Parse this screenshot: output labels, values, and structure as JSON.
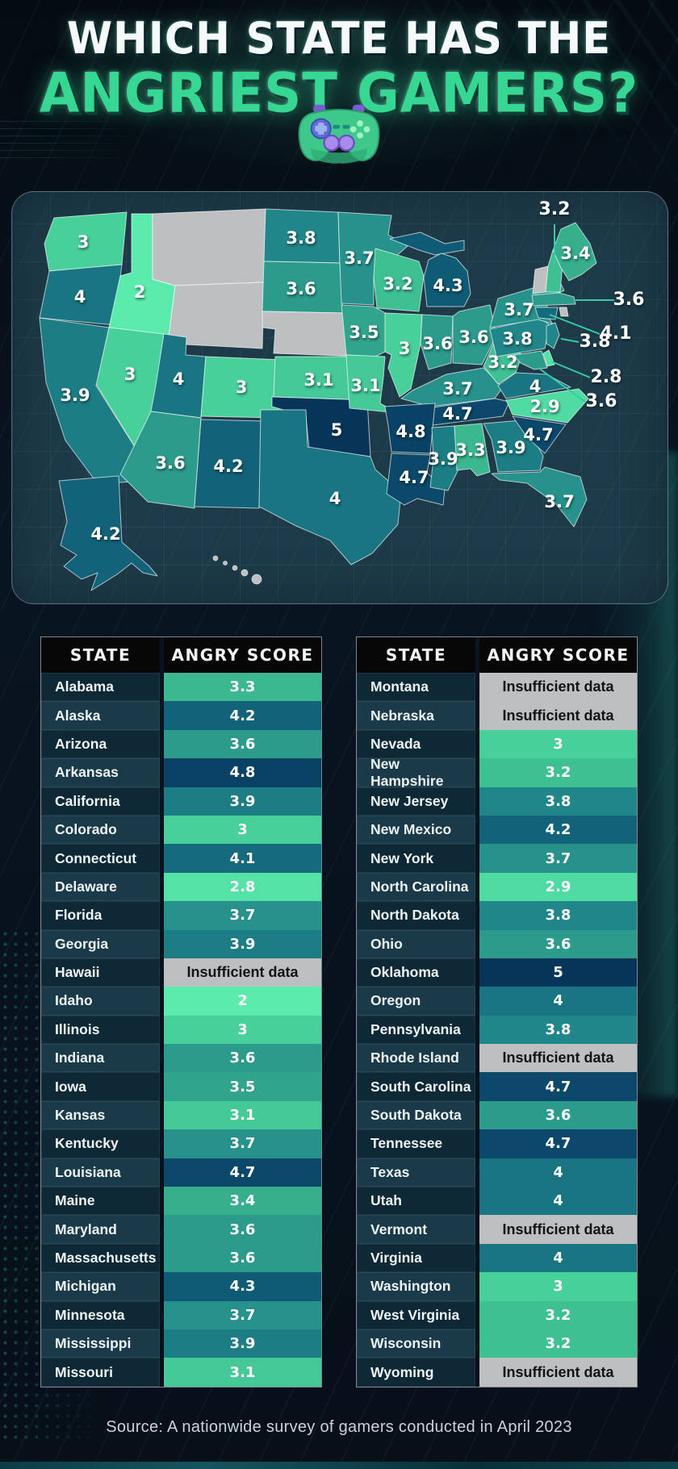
{
  "title": {
    "line1": "WHICH STATE HAS THE",
    "line2": "ANGRIEST GAMERS?"
  },
  "source_note": "Source: A nationwide survey of gamers conducted in April 2023",
  "table_headers": [
    "STATE",
    "ANGRY SCORE"
  ],
  "insufficient_label": "Insufficient data",
  "score_colors": {
    "2": "#5BEBAD",
    "2.8": "#55E2A6",
    "2.9": "#50DBA2",
    "3": "#48D09B",
    "3.1": "#44C997",
    "3.2": "#3FC093",
    "3.3": "#3BB890",
    "3.4": "#36AF8C",
    "3.5": "#31A58B",
    "3.6": "#2C9B8B",
    "3.7": "#27928C",
    "3.8": "#218689",
    "3.9": "#1D7D85",
    "4": "#197581",
    "4.1": "#156B7D",
    "4.2": "#126379",
    "4.3": "#0F5A74",
    "4.7": "#0B486A",
    "4.8": "#094264",
    "5": "#07355A",
    "insufficient": "#BDBFC0"
  },
  "accent_colors": {
    "title_green": "#36D793",
    "background": "#081019",
    "map_panel": "#1D3A48",
    "callout_line": "#35CBA6"
  },
  "states": [
    {
      "abbr": "AL",
      "name": "Alabama",
      "score": 3.3
    },
    {
      "abbr": "AK",
      "name": "Alaska",
      "score": 4.2
    },
    {
      "abbr": "AZ",
      "name": "Arizona",
      "score": 3.6
    },
    {
      "abbr": "AR",
      "name": "Arkansas",
      "score": 4.8
    },
    {
      "abbr": "CA",
      "name": "California",
      "score": 3.9
    },
    {
      "abbr": "CO",
      "name": "Colorado",
      "score": 3
    },
    {
      "abbr": "CT",
      "name": "Connecticut",
      "score": 4.1
    },
    {
      "abbr": "DE",
      "name": "Delaware",
      "score": 2.8
    },
    {
      "abbr": "FL",
      "name": "Florida",
      "score": 3.7
    },
    {
      "abbr": "GA",
      "name": "Georgia",
      "score": 3.9
    },
    {
      "abbr": "HI",
      "name": "Hawaii",
      "score": null
    },
    {
      "abbr": "ID",
      "name": "Idaho",
      "score": 2
    },
    {
      "abbr": "IL",
      "name": "Illinois",
      "score": 3
    },
    {
      "abbr": "IN",
      "name": "Indiana",
      "score": 3.6
    },
    {
      "abbr": "IA",
      "name": "Iowa",
      "score": 3.5
    },
    {
      "abbr": "KS",
      "name": "Kansas",
      "score": 3.1
    },
    {
      "abbr": "KY",
      "name": "Kentucky",
      "score": 3.7
    },
    {
      "abbr": "LA",
      "name": "Louisiana",
      "score": 4.7
    },
    {
      "abbr": "ME",
      "name": "Maine",
      "score": 3.4
    },
    {
      "abbr": "MD",
      "name": "Maryland",
      "score": 3.6
    },
    {
      "abbr": "MA",
      "name": "Massachusetts",
      "score": 3.6
    },
    {
      "abbr": "MI",
      "name": "Michigan",
      "score": 4.3
    },
    {
      "abbr": "MN",
      "name": "Minnesota",
      "score": 3.7
    },
    {
      "abbr": "MS",
      "name": "Mississippi",
      "score": 3.9
    },
    {
      "abbr": "MO",
      "name": "Missouri",
      "score": 3.1
    },
    {
      "abbr": "MT",
      "name": "Montana",
      "score": null
    },
    {
      "abbr": "NE",
      "name": "Nebraska",
      "score": null
    },
    {
      "abbr": "NV",
      "name": "Nevada",
      "score": 3
    },
    {
      "abbr": "NH",
      "name": "New Hampshire",
      "score": 3.2
    },
    {
      "abbr": "NJ",
      "name": "New Jersey",
      "score": 3.8
    },
    {
      "abbr": "NM",
      "name": "New Mexico",
      "score": 4.2
    },
    {
      "abbr": "NY",
      "name": "New York",
      "score": 3.7
    },
    {
      "abbr": "NC",
      "name": "North Carolina",
      "score": 2.9
    },
    {
      "abbr": "ND",
      "name": "North Dakota",
      "score": 3.8
    },
    {
      "abbr": "OH",
      "name": "Ohio",
      "score": 3.6
    },
    {
      "abbr": "OK",
      "name": "Oklahoma",
      "score": 5
    },
    {
      "abbr": "OR",
      "name": "Oregon",
      "score": 4
    },
    {
      "abbr": "PA",
      "name": "Pennsylvania",
      "score": 3.8
    },
    {
      "abbr": "RI",
      "name": "Rhode Island",
      "score": null
    },
    {
      "abbr": "SC",
      "name": "South Carolina",
      "score": 4.7
    },
    {
      "abbr": "SD",
      "name": "South Dakota",
      "score": 3.6
    },
    {
      "abbr": "TN",
      "name": "Tennessee",
      "score": 4.7
    },
    {
      "abbr": "TX",
      "name": "Texas",
      "score": 4
    },
    {
      "abbr": "UT",
      "name": "Utah",
      "score": 4
    },
    {
      "abbr": "VT",
      "name": "Vermont",
      "score": null
    },
    {
      "abbr": "VA",
      "name": "Virginia",
      "score": 4
    },
    {
      "abbr": "WA",
      "name": "Washington",
      "score": 3
    },
    {
      "abbr": "WV",
      "name": "West Virginia",
      "score": 3.2
    },
    {
      "abbr": "WI",
      "name": "Wisconsin",
      "score": 3.2
    },
    {
      "abbr": "WY",
      "name": "Wyoming",
      "score": null
    }
  ],
  "chart_data": {
    "type": "choropleth",
    "title": "Which State Has the Angriest Gamers?",
    "metric": "Angry Score",
    "range": [
      2,
      5
    ],
    "legend_position": "none",
    "values": {
      "Alabama": 3.3,
      "Alaska": 4.2,
      "Arizona": 3.6,
      "Arkansas": 4.8,
      "California": 3.9,
      "Colorado": 3,
      "Connecticut": 4.1,
      "Delaware": 2.8,
      "Florida": 3.7,
      "Georgia": 3.9,
      "Hawaii": null,
      "Idaho": 2,
      "Illinois": 3,
      "Indiana": 3.6,
      "Iowa": 3.5,
      "Kansas": 3.1,
      "Kentucky": 3.7,
      "Louisiana": 4.7,
      "Maine": 3.4,
      "Maryland": 3.6,
      "Massachusetts": 3.6,
      "Michigan": 4.3,
      "Minnesota": 3.7,
      "Mississippi": 3.9,
      "Missouri": 3.1,
      "Montana": null,
      "Nebraska": null,
      "Nevada": 3,
      "New Hampshire": 3.2,
      "New Jersey": 3.8,
      "New Mexico": 4.2,
      "New York": 3.7,
      "North Carolina": 2.9,
      "North Dakota": 3.8,
      "Ohio": 3.6,
      "Oklahoma": 5,
      "Oregon": 4,
      "Pennsylvania": 3.8,
      "Rhode Island": null,
      "South Carolina": 4.7,
      "South Dakota": 3.6,
      "Tennessee": 4.7,
      "Texas": 4,
      "Utah": 4,
      "Vermont": null,
      "Virginia": 4,
      "Washington": 3,
      "West Virginia": 3.2,
      "Wisconsin": 3.2,
      "Wyoming": null
    },
    "insufficient_data_states": [
      "Hawaii",
      "Montana",
      "Nebraska",
      "Rhode Island",
      "Vermont",
      "Wyoming"
    ],
    "source": "A nationwide survey of gamers conducted in April 2023"
  }
}
